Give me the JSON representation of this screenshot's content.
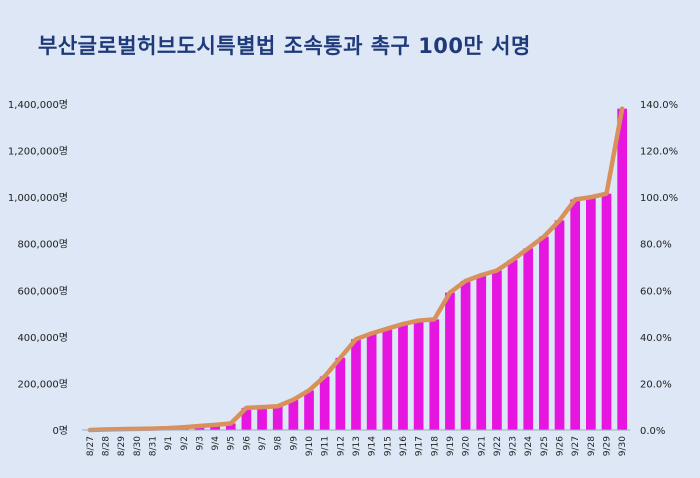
{
  "chart_data": {
    "type": "bar",
    "title": "부산글로벌허브도시특별법 조속통과 촉구 100만 서명",
    "categories": [
      "8/27",
      "8/28",
      "8/29",
      "8/30",
      "8/31",
      "9/1",
      "9/2",
      "9/3",
      "9/4",
      "9/5",
      "9/6",
      "9/7",
      "9/8",
      "9/9",
      "9/10",
      "9/11",
      "9/12",
      "9/13",
      "9/14",
      "9/15",
      "9/16",
      "9/17",
      "9/18",
      "9/19",
      "9/20",
      "9/21",
      "9/22",
      "9/23",
      "9/24",
      "9/25",
      "9/26",
      "9/27",
      "9/28",
      "9/29",
      "9/30"
    ],
    "series": [
      {
        "values": [
          0,
          2000,
          4000,
          5000,
          6000,
          8000,
          12000,
          17000,
          22000,
          28000,
          95000,
          98000,
          102000,
          130000,
          170000,
          230000,
          310000,
          390000,
          415000,
          435000,
          455000,
          470000,
          475000,
          590000,
          640000,
          665000,
          685000,
          730000,
          780000,
          830000,
          900000,
          990000,
          1000000,
          1015000,
          1380000
        ],
        "color": "#e616e0"
      }
    ],
    "line_color": "#d9905a",
    "ylim": [
      0,
      1400000
    ],
    "y_ticks": [
      "0명",
      "200,000명",
      "400,000명",
      "600,000명",
      "800,000명",
      "1,000,000명",
      "1,200,000명",
      "1,400,000명"
    ],
    "y2_ticks": [
      "0.0%",
      "20.0%",
      "40.0%",
      "60.0%",
      "80.0%",
      "100.0%",
      "120.0%",
      "140.0%"
    ],
    "grid": false,
    "legend": "none"
  }
}
